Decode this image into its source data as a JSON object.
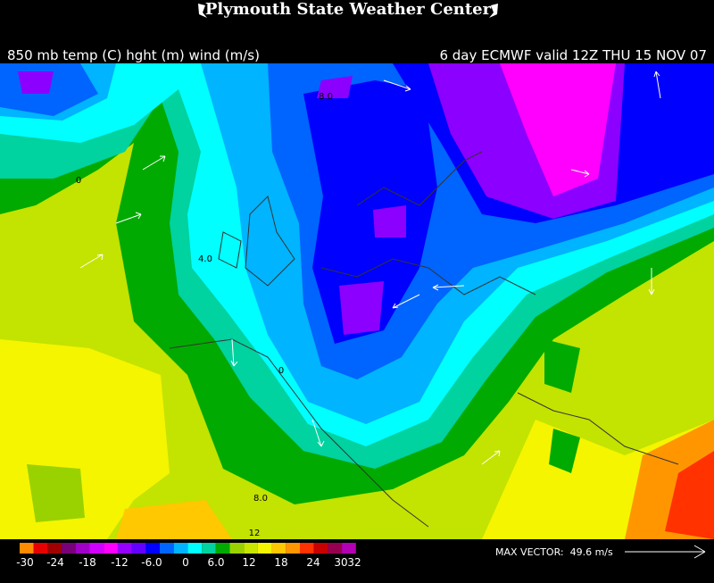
{
  "header": {
    "title": "Plymouth State Weather Center"
  },
  "subheader": {
    "left": "850 mb temp (C) hght (m) wind (m/s)",
    "right": "6 day ECMWF valid 12Z THU 15 NOV 07"
  },
  "map": {
    "contour_labels": [
      "8.0",
      "0",
      "4.0",
      "0",
      "8.0",
      "12"
    ]
  },
  "colorbar": {
    "labels": [
      "-30",
      "-24",
      "-18",
      "-12",
      "-6.0",
      "0",
      "6.0",
      "12",
      "18",
      "24",
      "30",
      "32"
    ]
  },
  "footer": {
    "max_vector": "MAX VECTOR:  49.6 m/s"
  }
}
